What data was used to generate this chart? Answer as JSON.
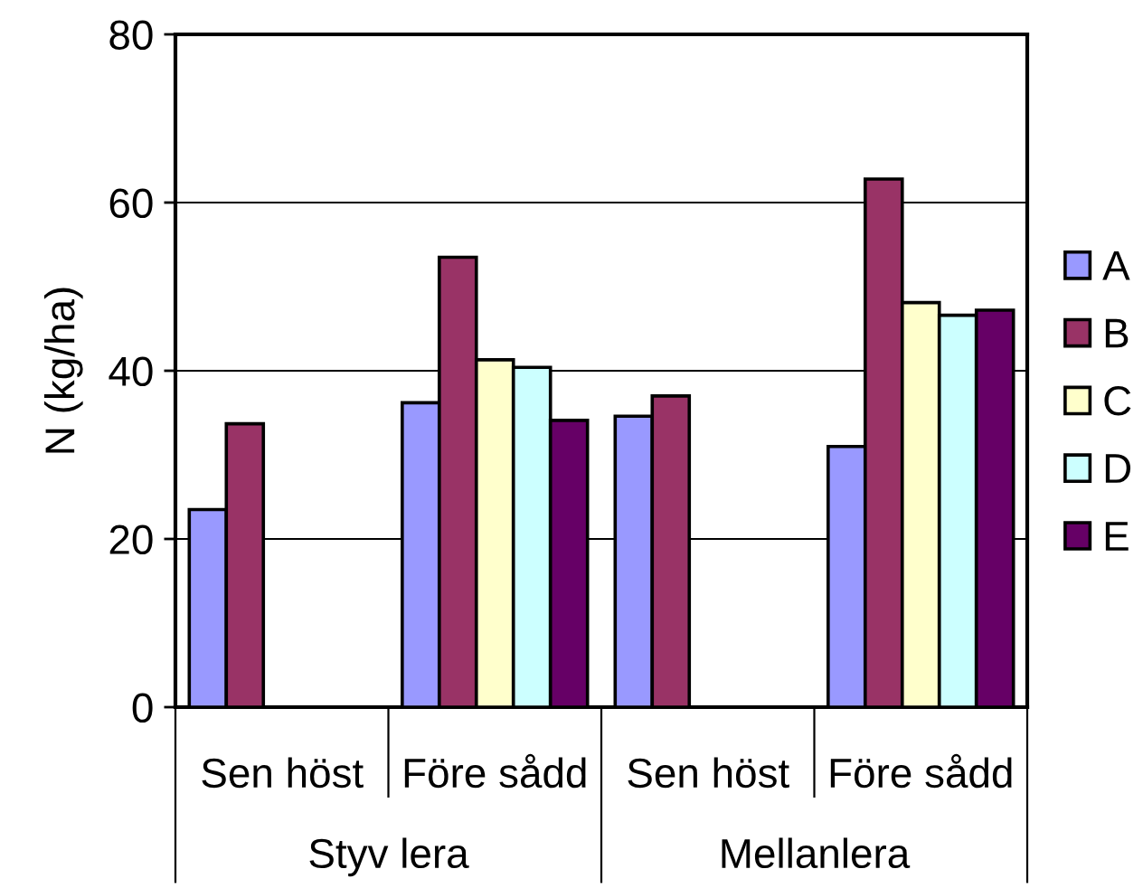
{
  "chart_data": {
    "type": "bar",
    "ylabel": "N (kg/ha)",
    "categories": [
      "Sen höst",
      "Före sådd",
      "Sen höst",
      "Före sådd"
    ],
    "annotations": [
      "Styv lera",
      "Mellanlera"
    ],
    "series": [
      {
        "name": "A",
        "color": "#9999ff",
        "values": [
          23.5,
          36.2,
          34.6,
          31.0
        ]
      },
      {
        "name": "B",
        "color": "#993366",
        "values": [
          33.7,
          53.5,
          37.0,
          62.8
        ]
      },
      {
        "name": "C",
        "color": "#ffffcc",
        "values": [
          null,
          41.3,
          null,
          48.1
        ]
      },
      {
        "name": "D",
        "color": "#ccffff",
        "values": [
          null,
          40.4,
          null,
          46.6
        ]
      },
      {
        "name": "E",
        "color": "#660066",
        "values": [
          null,
          34.1,
          null,
          47.2
        ]
      }
    ],
    "ylim": [
      0,
      80
    ],
    "yticks": [
      0,
      20,
      40,
      60,
      80
    ],
    "grid": "y",
    "legend": "right"
  }
}
